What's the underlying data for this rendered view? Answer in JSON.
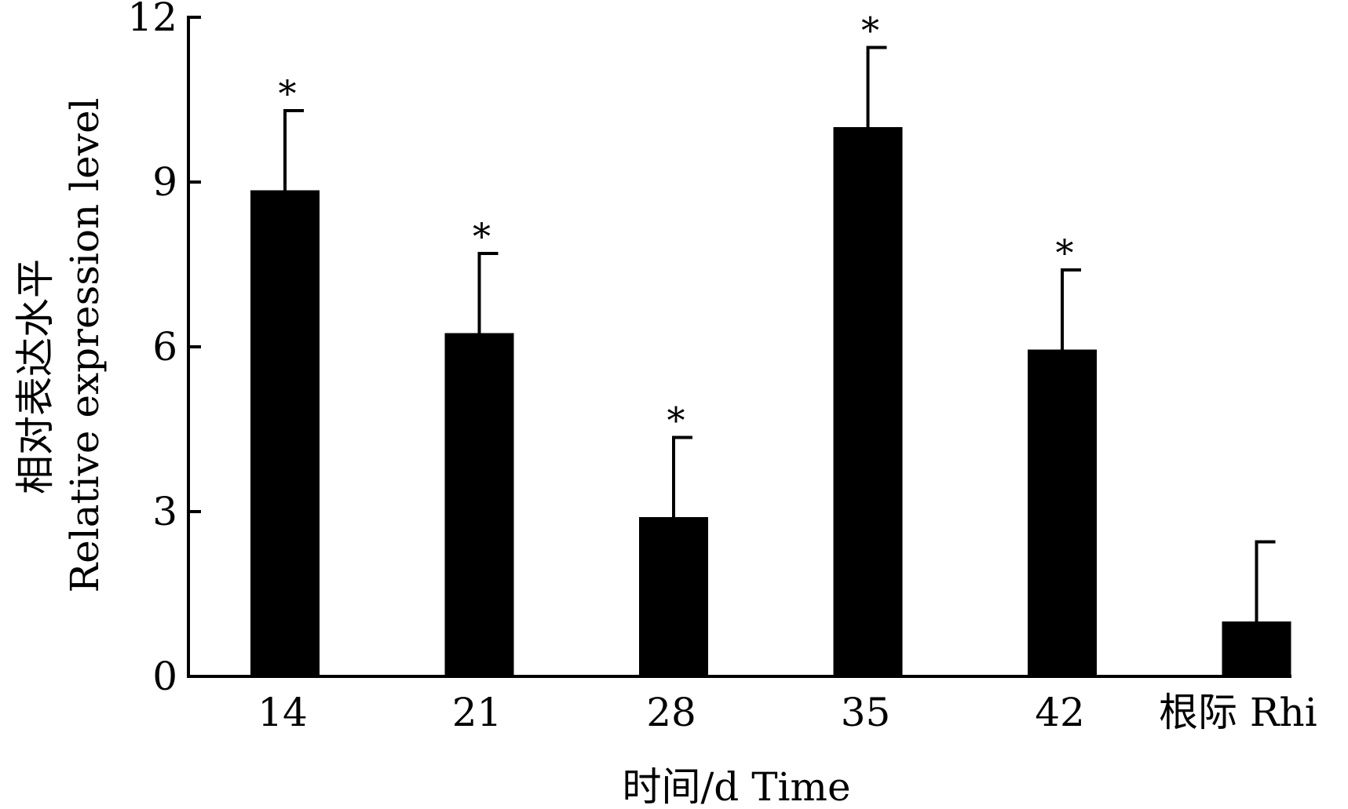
{
  "chart_data": {
    "type": "bar",
    "title": "",
    "categories": [
      "14",
      "21",
      "28",
      "35",
      "42",
      "根际 Rhi"
    ],
    "series": [
      {
        "values": [
          8.85,
          6.25,
          2.9,
          10.0,
          5.95,
          1.0
        ],
        "error": [
          1.45,
          1.45,
          1.45,
          1.45,
          1.45,
          1.45
        ],
        "significance": [
          "*",
          "*",
          "*",
          "*",
          "*",
          ""
        ]
      }
    ],
    "xlabel": "时间/d Time",
    "ylabel": [
      "相对表达水平",
      "Relative expression level"
    ],
    "ylim": [
      0,
      12
    ],
    "yticks": [
      0,
      3,
      6,
      9,
      12
    ],
    "grid": false,
    "bar_color": "#000000"
  }
}
